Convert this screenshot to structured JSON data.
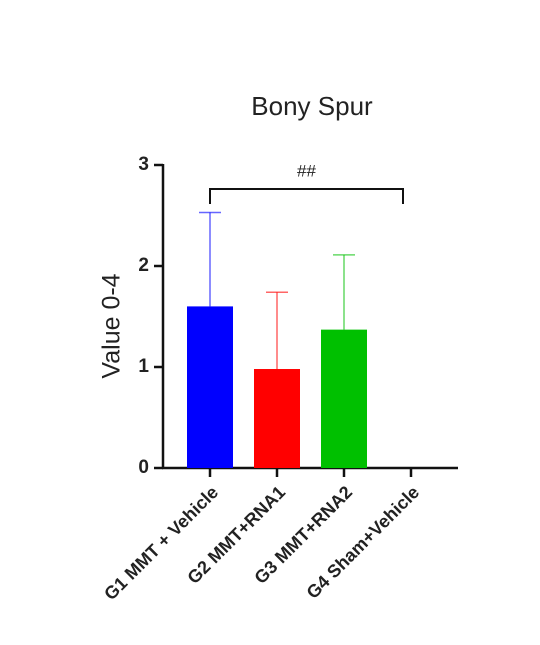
{
  "chart_data": {
    "type": "bar",
    "title": "Bony Spur",
    "y_label": "Value 0-4",
    "categories": [
      "G1 MMT + Vehicle",
      "G2 MMT+RNA1",
      "G3 MMT+RNA2",
      "G4 Sham+Vehicle"
    ],
    "values": [
      1.6,
      0.98,
      1.37,
      0
    ],
    "errors": [
      0.93,
      0.76,
      0.74,
      0
    ],
    "colors": [
      "#0000ff",
      "#ff0000",
      "#00c000",
      "#000000"
    ],
    "annotation": "##",
    "ylim": [
      0,
      3
    ],
    "yticks": [
      0,
      1,
      2,
      3
    ],
    "grid": false
  }
}
